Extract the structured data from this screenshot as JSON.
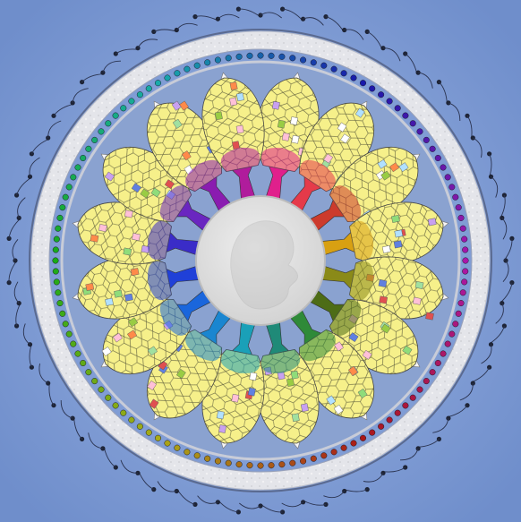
{
  "artwork": {
    "subject": "rose-window-mosaic",
    "petal_count": 16,
    "petal_fill": "#f6f08a",
    "petal_cell_line": "#555555",
    "background": "#7d9bd3",
    "outer_ring": "#e2e4e8",
    "center_disc": "#d9d9d9",
    "stem_colors": [
      "#e0208c",
      "#e53a4a",
      "#cc3b2c",
      "#d8a012",
      "#8a8a18",
      "#4d6c16",
      "#2f8a38",
      "#1f8a78",
      "#1aa0b8",
      "#1a86d0",
      "#1a66dc",
      "#2040d8",
      "#3a2cc8",
      "#6a26c0",
      "#8a1cb0",
      "#b01c9c"
    ],
    "accent_tile_colors": [
      "#8fdc7a",
      "#ffffff",
      "#b0e0ff",
      "#ff8a4a",
      "#c8a0f0",
      "#ffc0d8",
      "#6080e0",
      "#99cc44",
      "#e05050",
      "#a0e0a0"
    ]
  }
}
